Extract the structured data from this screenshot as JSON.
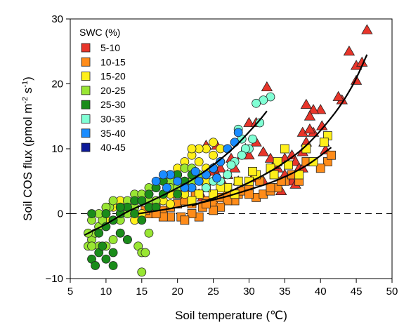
{
  "chart_data": {
    "type": "scatter",
    "xlabel": "Soil temperature (℃)",
    "ylabel_main": "Soil COS flux (pmol m",
    "ylabel_sup1": "-2",
    "ylabel_mid": " s",
    "ylabel_sup2": "-1",
    "ylabel_end": ")",
    "xlim": [
      5,
      50
    ],
    "ylim": [
      -10,
      30
    ],
    "xticks": [
      "5",
      "10",
      "15",
      "20",
      "25",
      "30",
      "35",
      "40",
      "45",
      "50"
    ],
    "yticks": [
      "−10",
      "0",
      "10",
      "20",
      "30"
    ],
    "zero_line": {
      "y": 0,
      "style": "dashed"
    },
    "legend": {
      "title": "SWC (%)",
      "placement": "top-left",
      "entries": [
        {
          "label": "5-10",
          "color": "#e8352a"
        },
        {
          "label": "10-15",
          "color": "#ff8c1a"
        },
        {
          "label": "15-20",
          "color": "#ffef1a"
        },
        {
          "label": "20-25",
          "color": "#99e633"
        },
        {
          "label": "25-30",
          "color": "#1a8c1a"
        },
        {
          "label": "30-35",
          "color": "#80ffd4"
        },
        {
          "label": "35-40",
          "color": "#1a8cff"
        },
        {
          "label": "40-45",
          "color": "#0d1a99"
        }
      ]
    },
    "series": [
      {
        "swc": "5-10",
        "marker": "triangle",
        "color": "#e8352a",
        "points": [
          [
            46.5,
            28.3
          ],
          [
            44,
            25
          ],
          [
            45,
            22.8
          ],
          [
            45.8,
            23.3
          ],
          [
            43,
            17.5
          ],
          [
            42.5,
            18
          ],
          [
            45,
            20.5
          ],
          [
            40,
            16
          ],
          [
            39,
            16
          ],
          [
            38,
            16.8
          ],
          [
            38.5,
            15
          ],
          [
            40.2,
            13.5
          ],
          [
            39,
            12.5
          ],
          [
            37.5,
            12.5
          ],
          [
            40.5,
            11
          ],
          [
            40.7,
            9.8
          ],
          [
            37.5,
            9.5
          ],
          [
            38,
            11
          ],
          [
            36,
            9
          ],
          [
            36.5,
            8
          ],
          [
            35,
            8.5
          ],
          [
            34,
            7
          ],
          [
            33.5,
            7.5
          ],
          [
            33,
            8.5
          ],
          [
            32,
            9.5
          ],
          [
            31,
            11
          ],
          [
            29.5,
            10
          ],
          [
            30,
            14
          ],
          [
            32.5,
            19.5
          ],
          [
            31,
            14
          ],
          [
            29,
            9
          ],
          [
            28,
            7
          ],
          [
            27.5,
            8.5
          ],
          [
            27,
            6
          ],
          [
            26,
            7
          ],
          [
            25.5,
            6
          ],
          [
            25,
            7
          ],
          [
            24,
            5
          ],
          [
            24.5,
            6.5
          ],
          [
            25.5,
            10.5
          ],
          [
            24,
            10.5
          ],
          [
            23,
            3
          ],
          [
            22,
            4
          ],
          [
            23.5,
            2.5
          ],
          [
            31,
            6
          ],
          [
            30.5,
            5.5
          ],
          [
            32,
            5
          ],
          [
            34,
            4
          ],
          [
            35,
            6
          ],
          [
            36,
            5
          ],
          [
            37,
            7
          ],
          [
            37.5,
            7
          ],
          [
            38.5,
            13
          ],
          [
            36.5,
            4.5
          ],
          [
            30,
            9
          ],
          [
            28.5,
            5
          ],
          [
            26.5,
            4.5
          ],
          [
            34.5,
            3.5
          ]
        ]
      },
      {
        "swc": "10-15",
        "marker": "square",
        "color": "#ff8c1a",
        "points": [
          [
            16,
            0
          ],
          [
            17,
            1
          ],
          [
            18,
            0.5
          ],
          [
            19,
            1
          ],
          [
            20,
            1.5
          ],
          [
            21,
            2
          ],
          [
            22,
            1.5
          ],
          [
            23,
            -0.5
          ],
          [
            23.5,
            1
          ],
          [
            24,
            2
          ],
          [
            25,
            1.5
          ],
          [
            26,
            2.5
          ],
          [
            27,
            3
          ],
          [
            28,
            2
          ],
          [
            28.5,
            3
          ],
          [
            29,
            3.5
          ],
          [
            30,
            4
          ],
          [
            31,
            2.5
          ],
          [
            32,
            3
          ],
          [
            33,
            3.5
          ],
          [
            34,
            4
          ],
          [
            35,
            5
          ],
          [
            36,
            6
          ],
          [
            38,
            8
          ],
          [
            39,
            8
          ],
          [
            41,
            8
          ],
          [
            41.5,
            9
          ],
          [
            40,
            7
          ],
          [
            37,
            5
          ],
          [
            34.5,
            5
          ],
          [
            33,
            4
          ],
          [
            31.5,
            5
          ],
          [
            30,
            3
          ],
          [
            27,
            2
          ],
          [
            26,
            1
          ],
          [
            25,
            0.5
          ],
          [
            24,
            1.5
          ],
          [
            22,
            0
          ],
          [
            20.5,
            -0.5
          ],
          [
            19,
            -0.5
          ],
          [
            18,
            -0.5
          ],
          [
            17,
            0
          ],
          [
            15.5,
            0.5
          ],
          [
            21,
            -1
          ],
          [
            22.5,
            3
          ],
          [
            20,
            3
          ]
        ]
      },
      {
        "swc": "15-20",
        "marker": "square",
        "color": "#ffef1a",
        "points": [
          [
            41,
            12
          ],
          [
            40.5,
            11
          ],
          [
            38,
            10
          ],
          [
            35,
            10
          ],
          [
            34,
            8
          ],
          [
            33,
            7
          ],
          [
            31,
            6
          ],
          [
            30,
            5
          ],
          [
            28.5,
            5
          ],
          [
            27,
            4
          ],
          [
            26,
            4
          ],
          [
            25,
            3
          ],
          [
            24,
            4
          ],
          [
            23,
            3
          ],
          [
            22,
            2
          ],
          [
            37,
            6
          ],
          [
            39,
            8
          ],
          [
            30.5,
            6.5
          ],
          [
            33.5,
            6
          ],
          [
            28,
            3
          ],
          [
            35.5,
            7.5
          ]
        ]
      },
      {
        "swc": "15-20",
        "marker": "circle",
        "color": "#ffef1a",
        "points": [
          [
            20,
            6
          ],
          [
            21,
            5
          ],
          [
            22,
            5
          ],
          [
            23,
            6
          ],
          [
            24,
            7
          ],
          [
            25,
            9
          ],
          [
            26,
            10
          ],
          [
            25,
            11
          ],
          [
            24,
            10
          ],
          [
            23,
            10
          ],
          [
            22,
            9
          ],
          [
            21,
            8
          ],
          [
            20,
            7
          ],
          [
            19,
            6
          ],
          [
            18,
            5
          ],
          [
            17,
            4
          ],
          [
            16,
            3
          ],
          [
            15,
            2
          ],
          [
            14,
            1
          ],
          [
            13,
            0
          ],
          [
            12,
            0
          ],
          [
            11,
            -1
          ],
          [
            10,
            -1
          ],
          [
            9,
            -2
          ],
          [
            19,
            3
          ],
          [
            21,
            3
          ],
          [
            22,
            4
          ],
          [
            24,
            5
          ],
          [
            20,
            4
          ],
          [
            18,
            2
          ],
          [
            16,
            1
          ],
          [
            15,
            0
          ],
          [
            14,
            -1
          ],
          [
            13,
            1
          ],
          [
            12,
            2
          ],
          [
            11,
            1
          ],
          [
            17,
            2
          ],
          [
            19,
            1.5
          ],
          [
            23,
            8
          ],
          [
            25,
            7
          ],
          [
            26,
            8
          ],
          [
            22,
            10
          ]
        ]
      },
      {
        "swc": "20-25",
        "marker": "circle",
        "color": "#99e633",
        "points": [
          [
            7.5,
            -5
          ],
          [
            8,
            -4
          ],
          [
            8.5,
            -3
          ],
          [
            9,
            -2
          ],
          [
            9.5,
            -1
          ],
          [
            10,
            0
          ],
          [
            10.5,
            1
          ],
          [
            11,
            2
          ],
          [
            12,
            1
          ],
          [
            13,
            2
          ],
          [
            14,
            3
          ],
          [
            15,
            3
          ],
          [
            16,
            4
          ],
          [
            17,
            4
          ],
          [
            18,
            5
          ],
          [
            19,
            5
          ],
          [
            20,
            6
          ],
          [
            21,
            7
          ],
          [
            22,
            7
          ],
          [
            23,
            6
          ],
          [
            24,
            6
          ],
          [
            25,
            7
          ],
          [
            27,
            10
          ],
          [
            14.5,
            -5
          ],
          [
            15,
            -6
          ],
          [
            15.5,
            -6
          ],
          [
            15,
            -9
          ],
          [
            13,
            -4
          ],
          [
            12,
            -3
          ],
          [
            11,
            -4
          ],
          [
            10,
            -5
          ],
          [
            9,
            -5
          ],
          [
            8,
            -5
          ],
          [
            7.5,
            -3
          ],
          [
            8,
            -1
          ],
          [
            9,
            0
          ],
          [
            10,
            1
          ],
          [
            11,
            -1
          ],
          [
            12,
            -1
          ],
          [
            13,
            0
          ],
          [
            14,
            1
          ],
          [
            16,
            2
          ],
          [
            17,
            2
          ],
          [
            18,
            3
          ],
          [
            19,
            4
          ],
          [
            20,
            4
          ],
          [
            21,
            5
          ],
          [
            22,
            5
          ],
          [
            16,
            -3
          ]
        ]
      },
      {
        "swc": "25-30",
        "marker": "circle",
        "color": "#1a8c1a",
        "points": [
          [
            8,
            -7
          ],
          [
            8.5,
            -8
          ],
          [
            9,
            -6
          ],
          [
            10,
            -7
          ],
          [
            11,
            -6
          ],
          [
            12,
            -3
          ],
          [
            13,
            -4
          ],
          [
            9,
            -3
          ],
          [
            10,
            -2
          ],
          [
            11,
            -1
          ],
          [
            12,
            0
          ],
          [
            13,
            1
          ],
          [
            14,
            2
          ],
          [
            15,
            2
          ],
          [
            16,
            3
          ],
          [
            17,
            4
          ],
          [
            18,
            5
          ],
          [
            19,
            6
          ],
          [
            20,
            6
          ],
          [
            21,
            5
          ],
          [
            22,
            6
          ],
          [
            23,
            5
          ],
          [
            24,
            6
          ],
          [
            10,
            0
          ],
          [
            8,
            0
          ],
          [
            12,
            1
          ],
          [
            14,
            0
          ],
          [
            16,
            1
          ],
          [
            18,
            3
          ],
          [
            20,
            3
          ],
          [
            11,
            -8
          ],
          [
            9.5,
            -5
          ],
          [
            15,
            -1
          ],
          [
            17,
            1
          ]
        ]
      },
      {
        "swc": "30-35",
        "marker": "circle",
        "color": "#80ffd4",
        "points": [
          [
            33,
            18
          ],
          [
            32,
            17.5
          ],
          [
            31,
            17
          ],
          [
            30,
            10
          ],
          [
            29.5,
            10
          ],
          [
            29,
            9
          ],
          [
            28,
            8
          ],
          [
            27,
            6
          ],
          [
            26,
            5
          ],
          [
            25,
            5
          ],
          [
            24,
            4
          ],
          [
            30.5,
            11.5
          ],
          [
            28.5,
            13
          ],
          [
            31.5,
            14
          ],
          [
            27.5,
            7.5
          ],
          [
            29,
            11.5
          ]
        ]
      },
      {
        "swc": "35-40",
        "marker": "circle",
        "color": "#1a8cff",
        "points": [
          [
            28.5,
            12.5
          ],
          [
            28,
            11
          ],
          [
            27,
            10
          ],
          [
            26,
            8
          ],
          [
            25,
            7
          ],
          [
            24,
            6
          ],
          [
            23,
            5
          ],
          [
            22,
            4
          ],
          [
            21,
            4
          ],
          [
            20,
            5
          ],
          [
            19,
            6
          ],
          [
            18,
            6
          ],
          [
            17,
            5
          ],
          [
            18.5,
            4
          ],
          [
            25.5,
            5.5
          ],
          [
            22.5,
            6.5
          ]
        ]
      }
    ],
    "fit_lines": [
      {
        "name": "circles",
        "x": [
          7,
          10,
          13,
          16,
          19,
          22,
          25,
          28,
          31,
          32.5
        ],
        "y": [
          -3.3,
          -1.6,
          0.3,
          1.8,
          3.4,
          5.2,
          7.5,
          10.3,
          13.8,
          15.8
        ]
      },
      {
        "name": "squares",
        "x": [
          14.5,
          18,
          22,
          26,
          30,
          34,
          38,
          41.5
        ],
        "y": [
          0,
          0.6,
          1.4,
          2.4,
          3.7,
          5.2,
          7.4,
          10.2
        ]
      },
      {
        "name": "triangles",
        "x": [
          22,
          26,
          30,
          34,
          38,
          42,
          44.5,
          46.5
        ],
        "y": [
          1.2,
          2.8,
          4.8,
          7.2,
          10.5,
          15.5,
          19.8,
          24.5
        ]
      }
    ]
  }
}
